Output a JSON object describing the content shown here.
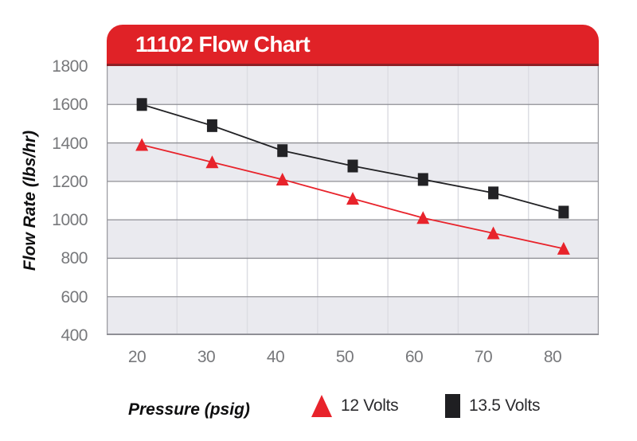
{
  "header": {
    "title": "11102 Flow Chart"
  },
  "axes": {
    "y_title": "Flow Rate (lbs/hr)",
    "x_title": "Pressure (psig)",
    "y_ticks": [
      "1800",
      "1600",
      "1400",
      "1200",
      "1000",
      "800",
      "600",
      "400"
    ],
    "x_ticks": [
      "20",
      "30",
      "40",
      "50",
      "60",
      "70",
      "80"
    ]
  },
  "legend": {
    "items": [
      {
        "label": "12 Volts",
        "marker": "triangle",
        "color": "#e8232b"
      },
      {
        "label": "13.5 Volts",
        "marker": "square",
        "color": "#1f1f22"
      }
    ]
  },
  "colors": {
    "header_red": "#e02227",
    "header_red_dark": "#8d2025",
    "band_gray": "#eaeaef",
    "band_white": "#ffffff",
    "grid_h": "#8f8f95",
    "grid_v": "#dcdde3",
    "plot_border": "#9a9aa0",
    "series_red": "#e8232b",
    "series_black": "#222225",
    "tick_text": "#77787b"
  },
  "chart_data": {
    "type": "line",
    "title": "11102 Flow Chart",
    "xlabel": "Pressure (psig)",
    "ylabel": "Flow Rate (lbs/hr)",
    "categories": [
      20,
      30,
      40,
      50,
      60,
      70,
      80
    ],
    "series": [
      {
        "name": "12 Volts",
        "marker": "triangle",
        "color": "#e8232b",
        "values": [
          1390,
          1300,
          1210,
          1110,
          1010,
          930,
          850
        ]
      },
      {
        "name": "13.5 Volts",
        "marker": "square",
        "color": "#222225",
        "values": [
          1600,
          1490,
          1360,
          1280,
          1210,
          1140,
          1040
        ]
      }
    ],
    "ylim": [
      400,
      1800
    ],
    "ytick_step": 200,
    "grid": "horizontal gridlines every 200; vertical gridlines at category boundaries; alternating gray/white bands",
    "legend_position": "bottom"
  }
}
